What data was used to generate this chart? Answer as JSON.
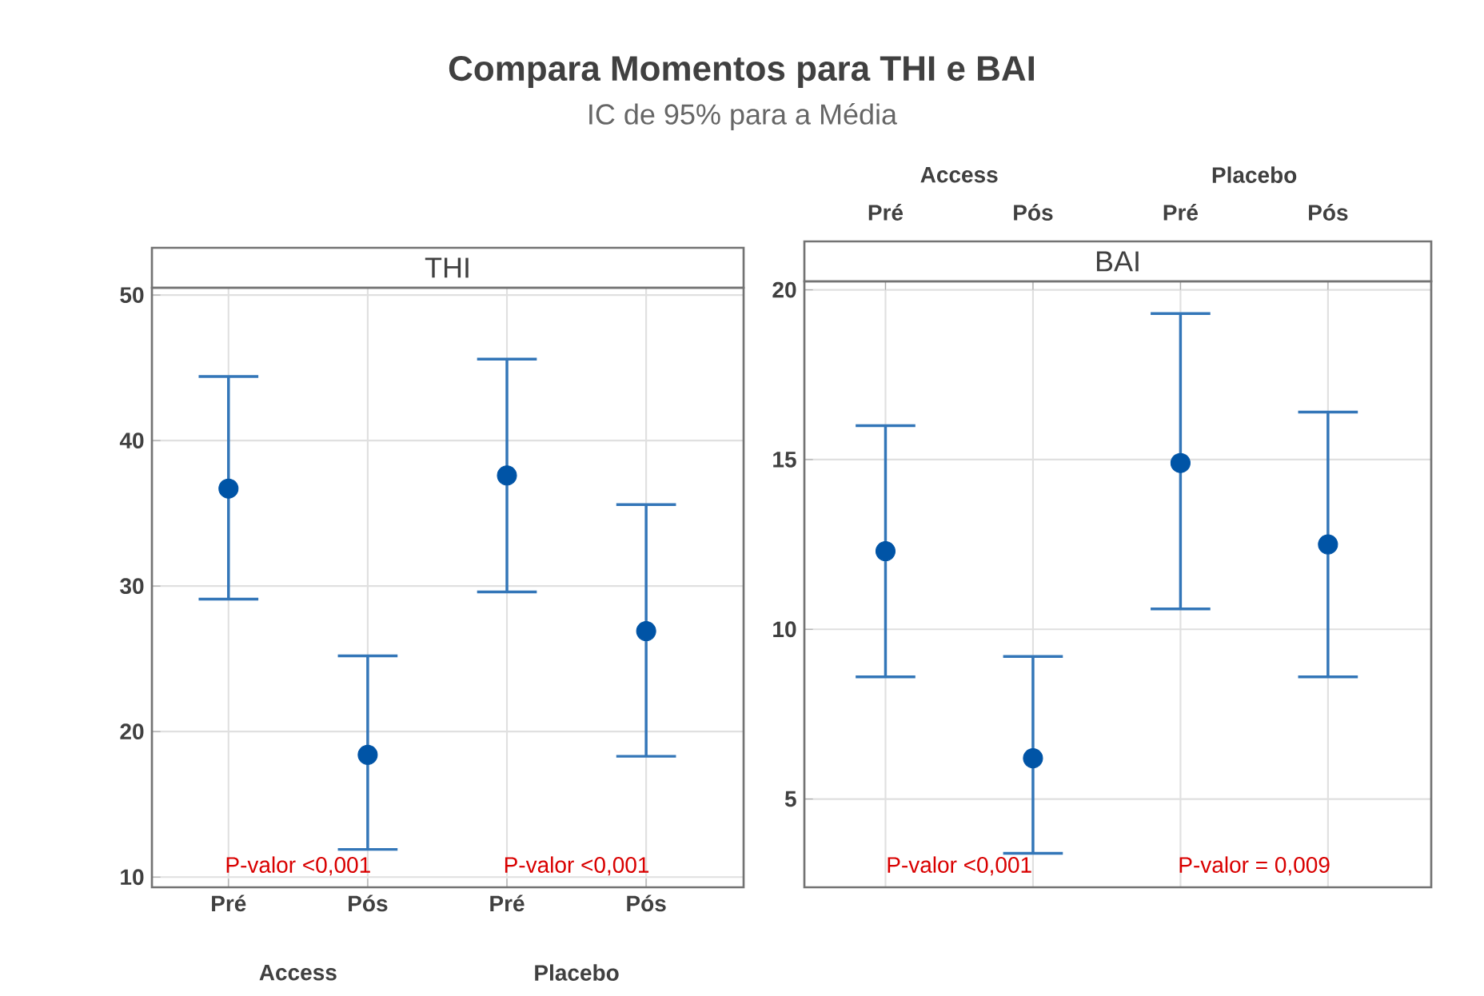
{
  "chart_data": [
    {
      "type": "other",
      "title": "Compara Momentos para THI e BAI",
      "subtitle": "IC de 95% para a Média"
    },
    {
      "type": "scatter",
      "title": "THI",
      "categories": [
        "Pré",
        "Pós",
        "Pré",
        "Pós"
      ],
      "series": [
        {
          "color": "#0054a6",
          "values": [
            36.7,
            18.4,
            37.6,
            26.9
          ],
          "errors": [
            [
              29.1,
              44.4
            ],
            [
              11.9,
              25.2
            ],
            [
              29.6,
              45.6
            ],
            [
              18.3,
              35.6
            ]
          ]
        }
      ],
      "ylim": [
        9.3,
        50.5
      ],
      "yticks": [
        10,
        20,
        30,
        40,
        50
      ],
      "grid": true,
      "marker": "circle",
      "annotations": [
        "Access",
        "Placebo",
        "P-valor <0,001",
        "P-valor <0,001"
      ]
    },
    {
      "type": "scatter",
      "title": "BAI",
      "categories": [
        "Pré",
        "Pós",
        "Pré",
        "Pós"
      ],
      "series": [
        {
          "color": "#0054a6",
          "values": [
            12.3,
            6.2,
            14.9,
            12.5
          ],
          "errors": [
            [
              8.6,
              16.0
            ],
            [
              3.4,
              9.2
            ],
            [
              10.6,
              19.3
            ],
            [
              8.6,
              16.4
            ]
          ]
        }
      ],
      "ylim": [
        2.4,
        20.25
      ],
      "yticks": [
        5,
        10,
        15,
        20
      ],
      "grid": true,
      "marker": "circle",
      "annotations": [
        "Access",
        "Placebo",
        "P-valor <0,001",
        "P-valor = 0,009"
      ]
    }
  ]
}
